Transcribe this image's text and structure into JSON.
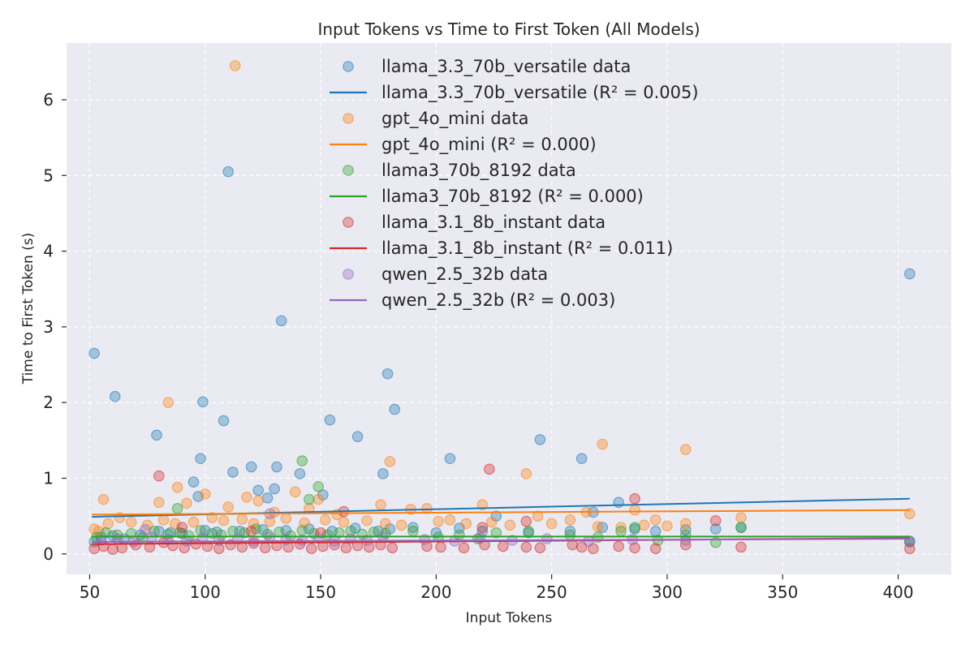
{
  "chart_data": {
    "type": "scatter",
    "title": "Input Tokens vs Time to First Token (All Models)",
    "xlabel": "Input Tokens",
    "ylabel": "Time to First Token (s)",
    "xlim": [
      40,
      423
    ],
    "ylim": [
      -0.27,
      6.75
    ],
    "xticks": [
      50,
      100,
      150,
      200,
      250,
      300,
      350,
      400
    ],
    "yticks": [
      0,
      1,
      2,
      3,
      4,
      5,
      6
    ],
    "grid": true,
    "legend": "upper-center",
    "series": [
      {
        "name": "llama_3.3_70b_versatile",
        "scatter_label": "llama_3.3_70b_versatile data",
        "fit_label": "llama_3.3_70b_versatile (R² = 0.005)",
        "color": "#1f77b4",
        "fit": [
          [
            51,
            0.49
          ],
          [
            405,
            0.73
          ]
        ],
        "points": [
          [
            52,
            2.65
          ],
          [
            61,
            2.08
          ],
          [
            79,
            1.57
          ],
          [
            95,
            0.95
          ],
          [
            98,
            1.26
          ],
          [
            99,
            2.01
          ],
          [
            97,
            0.76
          ],
          [
            108,
            1.76
          ],
          [
            110,
            5.05
          ],
          [
            112,
            1.08
          ],
          [
            120,
            1.15
          ],
          [
            123,
            0.84
          ],
          [
            127,
            0.74
          ],
          [
            130,
            0.86
          ],
          [
            131,
            1.15
          ],
          [
            133,
            3.08
          ],
          [
            141,
            1.06
          ],
          [
            151,
            0.78
          ],
          [
            154,
            1.77
          ],
          [
            166,
            1.55
          ],
          [
            177,
            1.06
          ],
          [
            179,
            2.38
          ],
          [
            182,
            1.91
          ],
          [
            206,
            1.26
          ],
          [
            245,
            1.51
          ],
          [
            263,
            1.26
          ],
          [
            279,
            0.68
          ],
          [
            405,
            3.7
          ],
          [
            52,
            0.16
          ],
          [
            55,
            0.22
          ],
          [
            60,
            0.24
          ],
          [
            65,
            0.2
          ],
          [
            72,
            0.25
          ],
          [
            80,
            0.3
          ],
          [
            85,
            0.28
          ],
          [
            90,
            0.27
          ],
          [
            100,
            0.31
          ],
          [
            105,
            0.29
          ],
          [
            115,
            0.3
          ],
          [
            125,
            0.32
          ],
          [
            135,
            0.31
          ],
          [
            145,
            0.33
          ],
          [
            155,
            0.3
          ],
          [
            165,
            0.34
          ],
          [
            175,
            0.3
          ],
          [
            180,
            0.33
          ],
          [
            190,
            0.35
          ],
          [
            200,
            0.28
          ],
          [
            210,
            0.34
          ],
          [
            220,
            0.3
          ],
          [
            226,
            0.5
          ],
          [
            240,
            0.28
          ],
          [
            258,
            0.3
          ],
          [
            268,
            0.55
          ],
          [
            272,
            0.35
          ],
          [
            286,
            0.33
          ],
          [
            295,
            0.3
          ],
          [
            308,
            0.32
          ],
          [
            321,
            0.33
          ],
          [
            332,
            0.35
          ],
          [
            405,
            0.16
          ]
        ]
      },
      {
        "name": "gpt_4o_mini",
        "scatter_label": "gpt_4o_mini data",
        "fit_label": "gpt_4o_mini (R² = 0.000)",
        "color": "#ff7f0e",
        "fit": [
          [
            51,
            0.52
          ],
          [
            405,
            0.58
          ]
        ],
        "points": [
          [
            113,
            6.45
          ],
          [
            84,
            2.0
          ],
          [
            180,
            1.22
          ],
          [
            272,
            1.45
          ],
          [
            308,
            1.38
          ],
          [
            239,
            1.06
          ],
          [
            56,
            0.72
          ],
          [
            80,
            0.68
          ],
          [
            88,
            0.88
          ],
          [
            92,
            0.67
          ],
          [
            100,
            0.79
          ],
          [
            110,
            0.62
          ],
          [
            118,
            0.75
          ],
          [
            123,
            0.7
          ],
          [
            130,
            0.55
          ],
          [
            139,
            0.82
          ],
          [
            145,
            0.6
          ],
          [
            149,
            0.72
          ],
          [
            157,
            0.52
          ],
          [
            176,
            0.65
          ],
          [
            189,
            0.59
          ],
          [
            196,
            0.6
          ],
          [
            220,
            0.65
          ],
          [
            244,
            0.5
          ],
          [
            258,
            0.45
          ],
          [
            265,
            0.55
          ],
          [
            286,
            0.58
          ],
          [
            295,
            0.45
          ],
          [
            308,
            0.4
          ],
          [
            332,
            0.48
          ],
          [
            405,
            0.53
          ],
          [
            52,
            0.33
          ],
          [
            54,
            0.3
          ],
          [
            58,
            0.4
          ],
          [
            63,
            0.48
          ],
          [
            68,
            0.42
          ],
          [
            75,
            0.38
          ],
          [
            82,
            0.45
          ],
          [
            87,
            0.4
          ],
          [
            95,
            0.42
          ],
          [
            103,
            0.48
          ],
          [
            108,
            0.44
          ],
          [
            116,
            0.46
          ],
          [
            121,
            0.4
          ],
          [
            128,
            0.43
          ],
          [
            135,
            0.47
          ],
          [
            143,
            0.41
          ],
          [
            152,
            0.45
          ],
          [
            160,
            0.42
          ],
          [
            170,
            0.44
          ],
          [
            178,
            0.4
          ],
          [
            185,
            0.38
          ],
          [
            201,
            0.43
          ],
          [
            206,
            0.45
          ],
          [
            213,
            0.4
          ],
          [
            224,
            0.42
          ],
          [
            232,
            0.38
          ],
          [
            250,
            0.4
          ],
          [
            270,
            0.36
          ],
          [
            280,
            0.35
          ],
          [
            290,
            0.38
          ],
          [
            300,
            0.37
          ]
        ]
      },
      {
        "name": "llama3_70b_8192",
        "scatter_label": "llama3_70b_8192 data",
        "fit_label": "llama3_70b_8192 (R² = 0.000)",
        "color": "#2ca02c",
        "fit": [
          [
            51,
            0.23
          ],
          [
            405,
            0.23
          ]
        ],
        "points": [
          [
            142,
            1.23
          ],
          [
            149,
            0.89
          ],
          [
            88,
            0.6
          ],
          [
            145,
            0.72
          ],
          [
            53,
            0.22
          ],
          [
            57,
            0.28
          ],
          [
            62,
            0.25
          ],
          [
            68,
            0.27
          ],
          [
            73,
            0.22
          ],
          [
            78,
            0.3
          ],
          [
            84,
            0.26
          ],
          [
            89,
            0.28
          ],
          [
            93,
            0.24
          ],
          [
            98,
            0.31
          ],
          [
            103,
            0.27
          ],
          [
            107,
            0.25
          ],
          [
            112,
            0.3
          ],
          [
            117,
            0.28
          ],
          [
            122,
            0.33
          ],
          [
            127,
            0.26
          ],
          [
            132,
            0.29
          ],
          [
            137,
            0.24
          ],
          [
            142,
            0.31
          ],
          [
            147,
            0.27
          ],
          [
            153,
            0.25
          ],
          [
            158,
            0.28
          ],
          [
            163,
            0.3
          ],
          [
            168,
            0.26
          ],
          [
            173,
            0.29
          ],
          [
            178,
            0.27
          ],
          [
            190,
            0.3
          ],
          [
            201,
            0.22
          ],
          [
            210,
            0.25
          ],
          [
            218,
            0.2
          ],
          [
            226,
            0.28
          ],
          [
            240,
            0.3
          ],
          [
            258,
            0.25
          ],
          [
            270,
            0.22
          ],
          [
            280,
            0.3
          ],
          [
            286,
            0.35
          ],
          [
            296,
            0.18
          ],
          [
            308,
            0.25
          ],
          [
            321,
            0.15
          ],
          [
            332,
            0.35
          ],
          [
            405,
            0.16
          ]
        ]
      },
      {
        "name": "llama_3.1_8b_instant",
        "scatter_label": "llama_3.1_8b_instant data",
        "fit_label": "llama_3.1_8b_instant (R² = 0.011)",
        "color": "#d62728",
        "fit": [
          [
            51,
            0.13
          ],
          [
            405,
            0.21
          ]
        ],
        "points": [
          [
            80,
            1.03
          ],
          [
            223,
            1.12
          ],
          [
            286,
            0.73
          ],
          [
            160,
            0.56
          ],
          [
            52,
            0.07
          ],
          [
            56,
            0.1
          ],
          [
            60,
            0.06
          ],
          [
            64,
            0.08
          ],
          [
            70,
            0.12
          ],
          [
            76,
            0.09
          ],
          [
            82,
            0.15
          ],
          [
            86,
            0.11
          ],
          [
            91,
            0.08
          ],
          [
            96,
            0.13
          ],
          [
            101,
            0.1
          ],
          [
            106,
            0.07
          ],
          [
            111,
            0.12
          ],
          [
            116,
            0.09
          ],
          [
            121,
            0.14
          ],
          [
            126,
            0.08
          ],
          [
            131,
            0.11
          ],
          [
            136,
            0.09
          ],
          [
            141,
            0.13
          ],
          [
            146,
            0.07
          ],
          [
            151,
            0.1
          ],
          [
            156,
            0.12
          ],
          [
            161,
            0.08
          ],
          [
            166,
            0.11
          ],
          [
            171,
            0.09
          ],
          [
            176,
            0.12
          ],
          [
            181,
            0.08
          ],
          [
            196,
            0.1
          ],
          [
            202,
            0.09
          ],
          [
            212,
            0.08
          ],
          [
            221,
            0.12
          ],
          [
            229,
            0.1
          ],
          [
            239,
            0.09
          ],
          [
            245,
            0.08
          ],
          [
            259,
            0.12
          ],
          [
            263,
            0.09
          ],
          [
            268,
            0.07
          ],
          [
            279,
            0.1
          ],
          [
            286,
            0.08
          ],
          [
            295,
            0.07
          ],
          [
            308,
            0.12
          ],
          [
            321,
            0.44
          ],
          [
            332,
            0.09
          ],
          [
            405,
            0.07
          ],
          [
            90,
            0.35
          ],
          [
            120,
            0.3
          ],
          [
            150,
            0.28
          ],
          [
            220,
            0.35
          ],
          [
            239,
            0.43
          ]
        ]
      },
      {
        "name": "qwen_2.5_32b",
        "scatter_label": "qwen_2.5_32b data",
        "fit_label": "qwen_2.5_32b (R² = 0.003)",
        "color": "#9467bd",
        "fit": [
          [
            51,
            0.16
          ],
          [
            405,
            0.2
          ]
        ],
        "points": [
          [
            128,
            0.53
          ],
          [
            74,
            0.32
          ],
          [
            55,
            0.18
          ],
          [
            62,
            0.2
          ],
          [
            69,
            0.16
          ],
          [
            77,
            0.22
          ],
          [
            84,
            0.19
          ],
          [
            92,
            0.17
          ],
          [
            99,
            0.21
          ],
          [
            106,
            0.18
          ],
          [
            114,
            0.2
          ],
          [
            121,
            0.17
          ],
          [
            128,
            0.22
          ],
          [
            135,
            0.19
          ],
          [
            142,
            0.18
          ],
          [
            149,
            0.21
          ],
          [
            156,
            0.17
          ],
          [
            163,
            0.2
          ],
          [
            170,
            0.18
          ],
          [
            177,
            0.22
          ],
          [
            195,
            0.19
          ],
          [
            208,
            0.17
          ],
          [
            219,
            0.21
          ],
          [
            233,
            0.18
          ],
          [
            248,
            0.2
          ],
          [
            266,
            0.17
          ],
          [
            285,
            0.19
          ],
          [
            308,
            0.18
          ],
          [
            405,
            0.17
          ]
        ]
      }
    ]
  }
}
